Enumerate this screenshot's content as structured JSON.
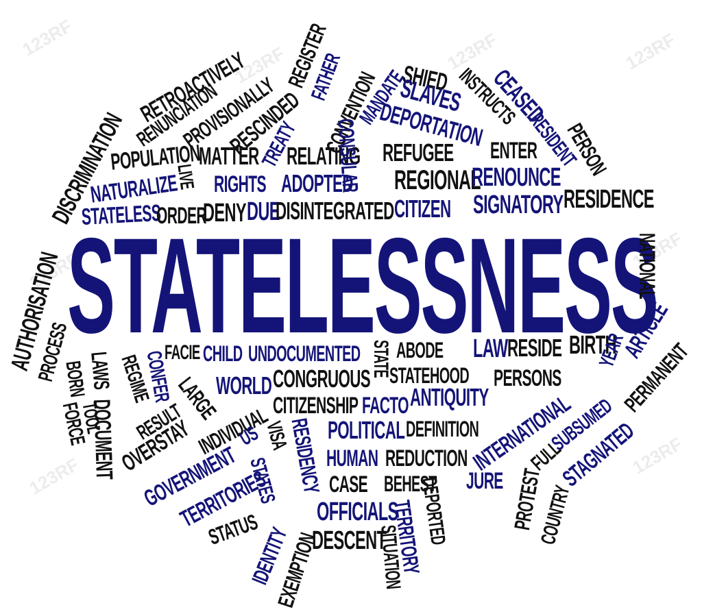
{
  "colors": {
    "black": "#111111",
    "blue": "#141478"
  },
  "watermark": "123RF",
  "words": [
    {
      "text": "STATELESSNESS",
      "c": "blue"
    },
    {
      "text": "DISCRIMINATION",
      "c": "black"
    },
    {
      "text": "RETROACTIVELY",
      "c": "black"
    },
    {
      "text": "RENUNCIATION",
      "c": "black"
    },
    {
      "text": "PROVISIONALLY",
      "c": "black"
    },
    {
      "text": "RESCINDED",
      "c": "black"
    },
    {
      "text": "REGISTER",
      "c": "black"
    },
    {
      "text": "FATHER",
      "c": "blue"
    },
    {
      "text": "CONVENTION",
      "c": "black"
    },
    {
      "text": "MANDATE",
      "c": "blue"
    },
    {
      "text": "SHIED",
      "c": "black"
    },
    {
      "text": "SLAVES",
      "c": "blue"
    },
    {
      "text": "INSTRUCTS",
      "c": "black"
    },
    {
      "text": "CEASED",
      "c": "blue"
    },
    {
      "text": "DEPORTATION",
      "c": "blue"
    },
    {
      "text": "RESIDENT",
      "c": "blue"
    },
    {
      "text": "PERSON",
      "c": "black"
    },
    {
      "text": "POPULATION",
      "c": "black"
    },
    {
      "text": "MATTER",
      "c": "black"
    },
    {
      "text": "TREATY",
      "c": "blue"
    },
    {
      "text": "RELATING",
      "c": "black"
    },
    {
      "text": "CONSULAR",
      "c": "blue"
    },
    {
      "text": "REFUGEE",
      "c": "black"
    },
    {
      "text": "ENTER",
      "c": "black"
    },
    {
      "text": "LIVE",
      "c": "black"
    },
    {
      "text": "NATURALIZE",
      "c": "blue"
    },
    {
      "text": "RIGHTS",
      "c": "blue"
    },
    {
      "text": "ADOPTED",
      "c": "blue"
    },
    {
      "text": "REGIONAL",
      "c": "black"
    },
    {
      "text": "RENOUNCE",
      "c": "blue"
    },
    {
      "text": "STATELESS",
      "c": "blue"
    },
    {
      "text": "ORDER",
      "c": "black"
    },
    {
      "text": "DENY",
      "c": "black"
    },
    {
      "text": "DUE",
      "c": "blue"
    },
    {
      "text": "DISINTEGRATED",
      "c": "black"
    },
    {
      "text": "CITIZEN",
      "c": "blue"
    },
    {
      "text": "SIGNATORY",
      "c": "blue"
    },
    {
      "text": "RESIDENCE",
      "c": "black"
    },
    {
      "text": "NATIONAL",
      "c": "black"
    },
    {
      "text": "AUTHORISATION",
      "c": "black"
    },
    {
      "text": "PROCESS",
      "c": "black"
    },
    {
      "text": "ARTICLE",
      "c": "blue"
    },
    {
      "text": "PERMANENT",
      "c": "black"
    },
    {
      "text": "BORN",
      "c": "black"
    },
    {
      "text": "LAWS",
      "c": "black"
    },
    {
      "text": "REGIME",
      "c": "black"
    },
    {
      "text": "CONFER",
      "c": "blue"
    },
    {
      "text": "FACIE",
      "c": "black"
    },
    {
      "text": "CHILD",
      "c": "blue"
    },
    {
      "text": "UNDOCUMENTED",
      "c": "blue"
    },
    {
      "text": "STATE",
      "c": "black"
    },
    {
      "text": "ABODE",
      "c": "black"
    },
    {
      "text": "LAW",
      "c": "blue"
    },
    {
      "text": "RESIDE",
      "c": "black"
    },
    {
      "text": "BIRTH",
      "c": "black"
    },
    {
      "text": "YEAR",
      "c": "blue"
    },
    {
      "text": "FORCE",
      "c": "black"
    },
    {
      "text": "TOOL",
      "c": "black"
    },
    {
      "text": "DOCUMENT",
      "c": "black"
    },
    {
      "text": "LARGE",
      "c": "black"
    },
    {
      "text": "WORLD",
      "c": "blue"
    },
    {
      "text": "CONGRUOUS",
      "c": "black"
    },
    {
      "text": "STATEHOOD",
      "c": "black"
    },
    {
      "text": "PERSONS",
      "c": "black"
    },
    {
      "text": "RESULT",
      "c": "black"
    },
    {
      "text": "CITIZENSHIP",
      "c": "black"
    },
    {
      "text": "FACTO",
      "c": "blue"
    },
    {
      "text": "ANTIQUITY",
      "c": "blue"
    },
    {
      "text": "SUBSUMED",
      "c": "blue"
    },
    {
      "text": "OVERSTAY",
      "c": "black"
    },
    {
      "text": "INDIVIDUAL",
      "c": "black"
    },
    {
      "text": "RESIDENCY",
      "c": "blue"
    },
    {
      "text": "POLITICAL",
      "c": "blue"
    },
    {
      "text": "DEFINITION",
      "c": "black"
    },
    {
      "text": "INTERNATIONAL",
      "c": "blue"
    },
    {
      "text": "FULL",
      "c": "black"
    },
    {
      "text": "STAGNATED",
      "c": "blue"
    },
    {
      "text": "GOVERNMENT",
      "c": "blue"
    },
    {
      "text": "US",
      "c": "blue"
    },
    {
      "text": "VISA",
      "c": "black"
    },
    {
      "text": "HUMAN",
      "c": "blue"
    },
    {
      "text": "REDUCTION",
      "c": "black"
    },
    {
      "text": "TERRITORIES",
      "c": "blue"
    },
    {
      "text": "STATES",
      "c": "blue"
    },
    {
      "text": "CASE",
      "c": "black"
    },
    {
      "text": "BEHEST",
      "c": "black"
    },
    {
      "text": "DEPORTED",
      "c": "black"
    },
    {
      "text": "JURE",
      "c": "blue"
    },
    {
      "text": "PROTEST",
      "c": "black"
    },
    {
      "text": "COUNTRY",
      "c": "black"
    },
    {
      "text": "STATUS",
      "c": "black"
    },
    {
      "text": "OFFICIALS",
      "c": "blue"
    },
    {
      "text": "TERRITORY",
      "c": "blue"
    },
    {
      "text": "IDENTITY",
      "c": "blue"
    },
    {
      "text": "EXEMPTION",
      "c": "black"
    },
    {
      "text": "DESCENT",
      "c": "black"
    },
    {
      "text": "SITUATION",
      "c": "black"
    }
  ]
}
